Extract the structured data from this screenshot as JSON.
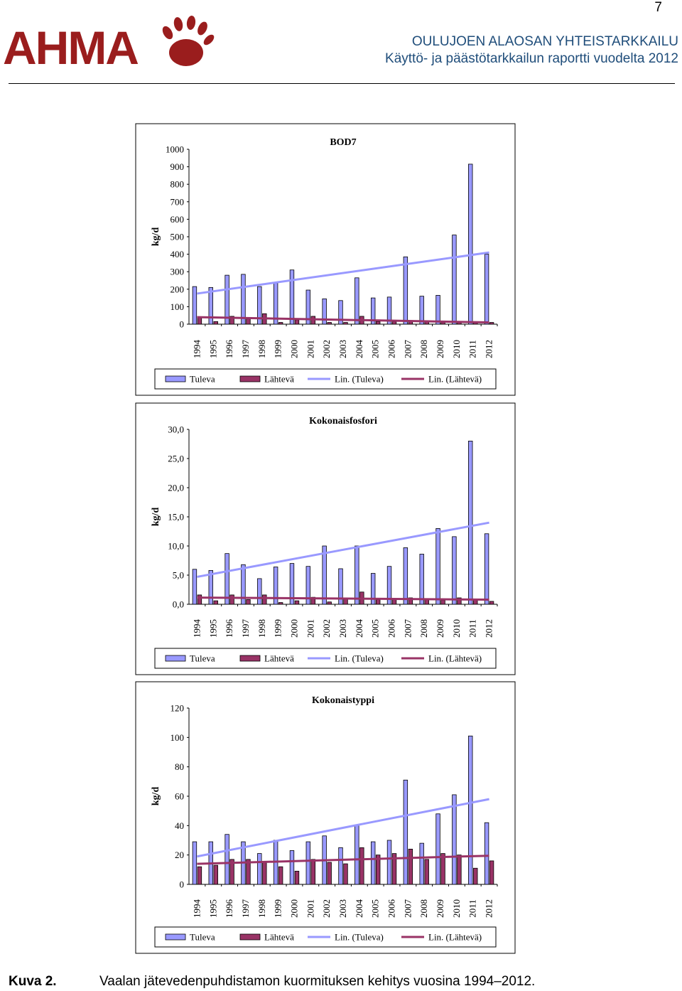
{
  "page_number": "7",
  "logo": {
    "name": "ahma-logo",
    "text": "AHMA",
    "color": "#9a1d1d"
  },
  "header": {
    "title_line1": "OULUJOEN ALAOSAN YHTEISTARKKAILU",
    "title_line2": "Käyttö- ja päästötarkkailun raportti vuodelta 2012"
  },
  "caption": {
    "label": "Kuva 2.",
    "text": "Vaalan jätevedenpuhdistamon kuormituksen kehitys vuosina 1994–2012."
  },
  "colors": {
    "tuleva": "#9999ff",
    "lahteva": "#993366",
    "lin_tuleva": "#9999ff",
    "lin_lahteva": "#993366",
    "border": "#000000"
  },
  "chart_data": [
    {
      "type": "bar",
      "title": "BOD7",
      "ylabel": "kg/d",
      "ylim": [
        0,
        1000
      ],
      "yticks": [
        "1000",
        "900",
        "800",
        "700",
        "600",
        "500",
        "400",
        "300",
        "200",
        "100",
        "0"
      ],
      "categories": [
        "1994",
        "1995",
        "1996",
        "1997",
        "1998",
        "1999",
        "2000",
        "2001",
        "2002",
        "2003",
        "2004",
        "2005",
        "2006",
        "2007",
        "2008",
        "2009",
        "2010",
        "2011",
        "2012"
      ],
      "series": [
        {
          "name": "Tuleva",
          "values": [
            215,
            210,
            280,
            285,
            215,
            235,
            310,
            195,
            145,
            135,
            265,
            150,
            155,
            385,
            160,
            165,
            510,
            915,
            400
          ]
        },
        {
          "name": "Lähtevä",
          "values": [
            40,
            15,
            45,
            30,
            60,
            10,
            25,
            45,
            10,
            10,
            45,
            15,
            15,
            15,
            15,
            10,
            10,
            10,
            10
          ]
        }
      ],
      "trendlines": [
        {
          "name": "Lin. (Tuleva)",
          "start": 175,
          "end": 410
        },
        {
          "name": "Lin. (Lähtevä)",
          "start": 40,
          "end": 10
        }
      ],
      "grid": false,
      "legend": "bottom"
    },
    {
      "type": "bar",
      "title": "Kokonaisfosfori",
      "ylabel": "kg/d",
      "ylim": [
        0,
        30
      ],
      "yticks": [
        "30,0",
        "25,0",
        "20,0",
        "15,0",
        "10,0",
        "5,0",
        "0,0"
      ],
      "categories": [
        "1994",
        "1995",
        "1996",
        "1997",
        "1998",
        "1999",
        "2000",
        "2001",
        "2002",
        "2003",
        "2004",
        "2005",
        "2006",
        "2007",
        "2008",
        "2009",
        "2010",
        "2011",
        "2012"
      ],
      "series": [
        {
          "name": "Tuleva",
          "values": [
            6.0,
            5.8,
            8.7,
            6.8,
            4.4,
            6.4,
            7.0,
            6.5,
            10.0,
            6.1,
            10.0,
            5.3,
            6.5,
            9.7,
            8.6,
            13.0,
            11.6,
            28.0,
            12.1
          ]
        },
        {
          "name": "Lähtevä",
          "values": [
            1.6,
            0.6,
            1.6,
            0.8,
            1.6,
            0.3,
            0.6,
            1.2,
            0.4,
            1.0,
            2.1,
            0.8,
            0.9,
            1.1,
            0.8,
            0.7,
            1.1,
            0.8,
            0.5
          ]
        }
      ],
      "trendlines": [
        {
          "name": "Lin. (Tuleva)",
          "start": 4.7,
          "end": 14.0
        },
        {
          "name": "Lin. (Lähtevä)",
          "start": 1.15,
          "end": 0.8
        }
      ],
      "grid": false,
      "legend": "bottom"
    },
    {
      "type": "bar",
      "title": "Kokonaistyppi",
      "ylabel": "kg/d",
      "ylim": [
        0,
        120
      ],
      "yticks": [
        "120",
        "100",
        "80",
        "60",
        "40",
        "20",
        "0"
      ],
      "categories": [
        "1994",
        "1995",
        "1996",
        "1997",
        "1998",
        "1999",
        "2000",
        "2001",
        "2002",
        "2003",
        "2004",
        "2005",
        "2006",
        "2007",
        "2008",
        "2009",
        "2010",
        "2011",
        "2012"
      ],
      "series": [
        {
          "name": "Tuleva",
          "values": [
            29,
            29,
            34,
            29,
            21,
            30,
            23,
            29,
            33,
            25,
            40,
            29,
            30,
            71,
            28,
            48,
            61,
            101,
            42
          ]
        },
        {
          "name": "Lähtevä",
          "values": [
            12,
            13,
            17,
            17,
            15,
            12,
            9,
            17,
            15,
            14,
            25,
            20,
            21,
            24,
            17,
            21,
            20,
            11,
            16
          ]
        }
      ],
      "trendlines": [
        {
          "name": "Lin. (Tuleva)",
          "start": 19,
          "end": 58
        },
        {
          "name": "Lin. (Lähtevä)",
          "start": 14,
          "end": 19.5
        }
      ],
      "grid": false,
      "legend": "bottom"
    }
  ]
}
